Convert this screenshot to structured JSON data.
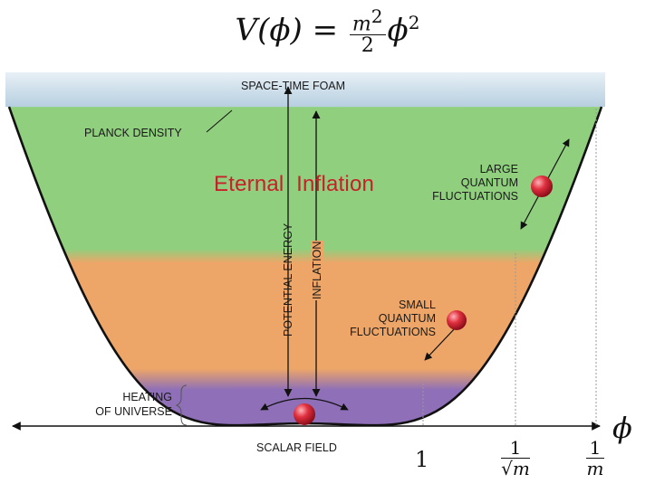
{
  "formula": {
    "lhs": "V(ϕ) =",
    "num": "m",
    "num_sup": "2",
    "den": "2",
    "var": "ϕ",
    "var_sup": "2"
  },
  "labels": {
    "space_time_foam": "SPACE-TIME FOAM",
    "planck_density": "PLANCK DENSITY",
    "eternal_inflation": "Eternal  Inflation",
    "potential_energy": "POTENTIAL ENERGY",
    "inflation": "INFLATION",
    "large_fluct": [
      "LARGE",
      "QUANTUM",
      "FLUCTUATIONS"
    ],
    "small_fluct": [
      "SMALL",
      "QUANTUM",
      "FLUCTUATIONS"
    ],
    "heating": [
      "HEATING",
      "OF UNIVERSE"
    ],
    "scalar_field": "SCALAR FIELD",
    "phi_axis": "ϕ"
  },
  "ticks": {
    "one": "1",
    "inv_sqrt_m_num": "1",
    "inv_sqrt_m_den": "√m",
    "inv_m_num": "1",
    "inv_m_den": "m"
  },
  "colors": {
    "foam": "#cfe0ec",
    "green": "#8fcf7e",
    "orange": "#eda668",
    "purple": "#8e6fb8",
    "ball": "#d7263d",
    "title": "#c8202a"
  }
}
